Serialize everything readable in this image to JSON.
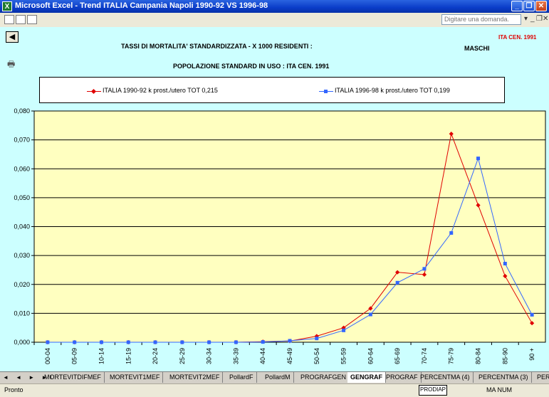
{
  "window": {
    "title": "Microsoft Excel - Trend ITALIA Campania Napoli 1990-92 VS 1996-98",
    "app_icon": "X",
    "btn_minimize": "_",
    "btn_restore": "❐",
    "btn_close": "✕"
  },
  "menubar": {
    "ask_placeholder": "Digitare una domanda.",
    "ctl_dropdown": "▾",
    "ctl_min": "_",
    "ctl_restore": "❐",
    "ctl_close": "✕"
  },
  "sheet": {
    "back_button": "◀",
    "title_line1": "TASSI DI MORTALITA' STANDARDIZZATA - X 1000 RESIDENTI :",
    "title_line2": "POPOLAZIONE STANDARD IN USO : ITA CEN. 1991",
    "gender_label": "MASCHI",
    "standard_label": "ITA CEN. 1991",
    "print_icon": "🖶"
  },
  "legend": {
    "series1": "ITALIA 1990-92 k prost./utero TOT 0,215",
    "series2": "ITALIA 1996-98 k prost./utero TOT 0,199"
  },
  "colors": {
    "series1": "#e00000",
    "series2": "#3366ff",
    "plot_bg": "#ffffc0",
    "page_bg": "#ccffff"
  },
  "chart_data": {
    "type": "line",
    "categories": [
      "00-04",
      "05-09",
      "10-14",
      "15-19",
      "20-24",
      "25-29",
      "30-34",
      "35-39",
      "40-44",
      "45-49",
      "50-54",
      "55-59",
      "60-64",
      "65-69",
      "70-74",
      "75-79",
      "80-84",
      "85-90",
      "90 +"
    ],
    "ytick_labels": [
      "0,000",
      "0,010",
      "0,020",
      "0,030",
      "0,040",
      "0,050",
      "0,060",
      "0,070",
      "0,080"
    ],
    "ylim": [
      0,
      0.08
    ],
    "grid": true,
    "legend_position": "top",
    "series": [
      {
        "name": "ITALIA 1990-92 k prost./utero TOT 0,215",
        "values": [
          0,
          0,
          0,
          0,
          0,
          0,
          0,
          0,
          0.0002,
          0.0004,
          0.0021,
          0.005,
          0.0117,
          0.0242,
          0.0234,
          0.0721,
          0.0474,
          0.0229,
          0.0066
        ]
      },
      {
        "name": "ITALIA 1996-98 k prost./utero TOT 0,199",
        "values": [
          0,
          0,
          0,
          0,
          0,
          0,
          0,
          0,
          0.0001,
          0.0005,
          0.0013,
          0.0041,
          0.0096,
          0.0206,
          0.0254,
          0.0378,
          0.0636,
          0.0272,
          0.0095
        ]
      }
    ]
  },
  "tabs": {
    "nav": "◄ ◄ ► ►I",
    "items": [
      "MORTEVITDIFMEF",
      "MORTEVIT1MEF",
      "MORTEVIT2MEF",
      "PollardF",
      "PollardM",
      "PROGRAFGEN",
      "GENGRAF",
      "PROGRAF",
      "PERCENTMA (4)",
      "PERCENTMA (3)",
      "PERCEN"
    ]
  },
  "status": {
    "left": "Pronto",
    "box": "PRODIAP",
    "right": "MA NUM"
  }
}
